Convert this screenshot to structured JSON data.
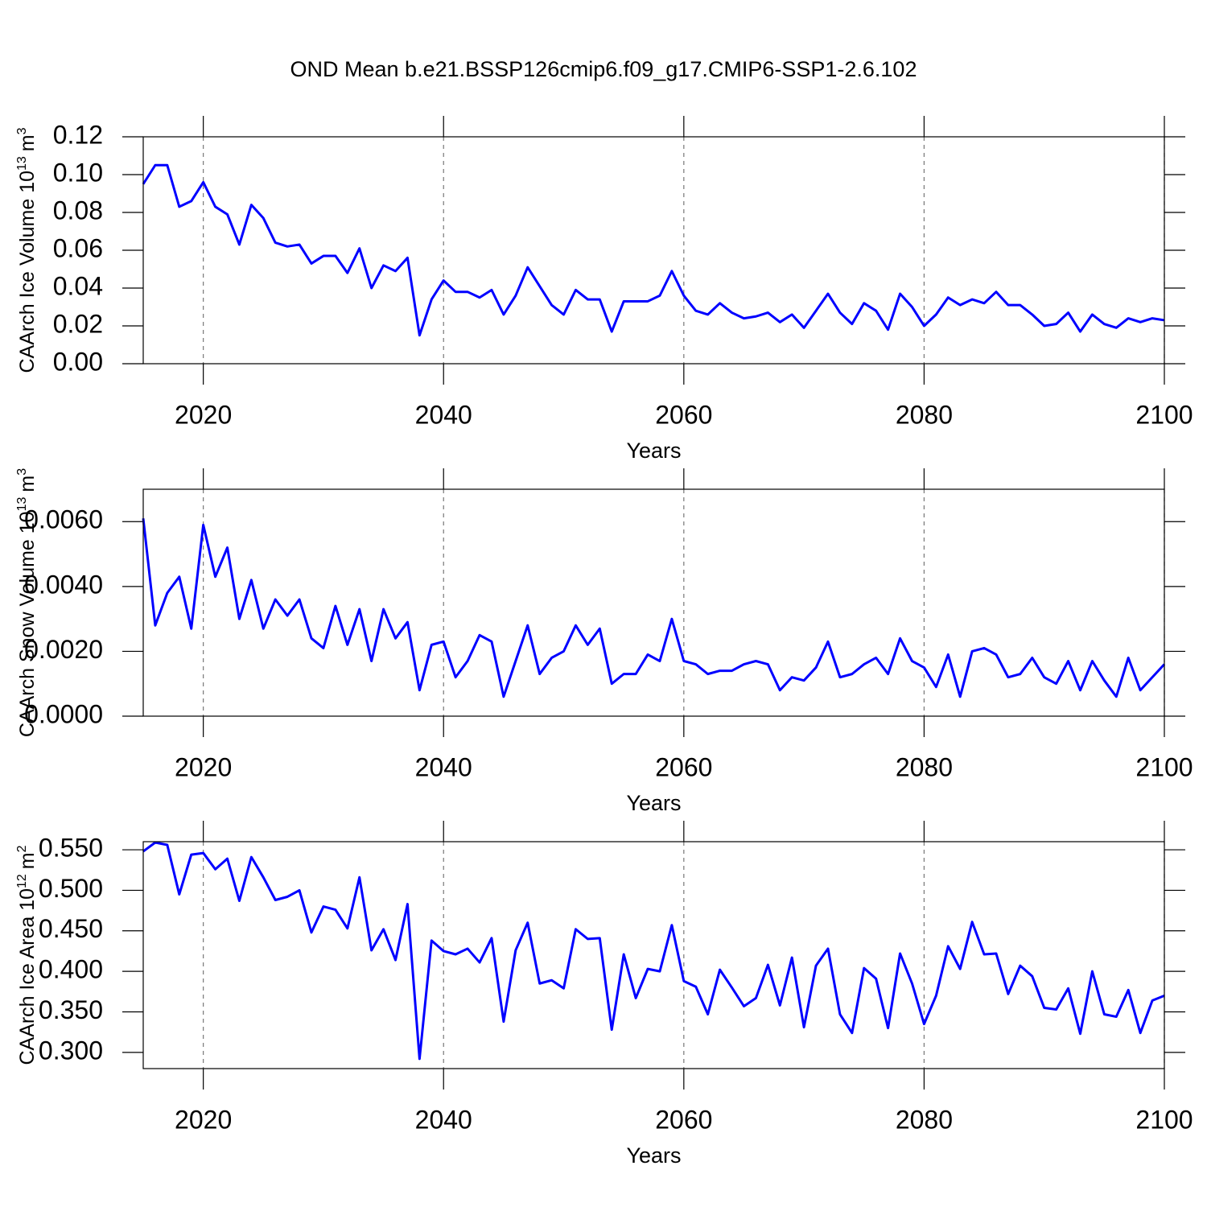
{
  "title": "OND Mean b.e21.BSSP126cmip6.f09_g17.CMIP6-SSP1-2.6.102",
  "chart_data": [
    {
      "type": "line",
      "xlabel": "Years",
      "ylabel": {
        "text": "CAArch Ice Volume 10",
        "exponent": "13",
        "unit": "m",
        "unit_exponent": "3"
      },
      "color": "#0000ff",
      "grid": true,
      "xlim": [
        2015,
        2100
      ],
      "xticks": [
        2020,
        2040,
        2060,
        2080,
        2100
      ],
      "ylim": [
        0,
        0.12
      ],
      "yticks": [
        {
          "value": 0,
          "label": "0.00"
        },
        {
          "value": 0.02,
          "label": "0.02"
        },
        {
          "value": 0.04,
          "label": "0.04"
        },
        {
          "value": 0.06,
          "label": "0.06"
        },
        {
          "value": 0.08,
          "label": "0.08"
        },
        {
          "value": 0.1,
          "label": "0.10"
        },
        {
          "value": 0.12,
          "label": "0.12"
        }
      ],
      "x": [
        2015,
        2016,
        2017,
        2018,
        2019,
        2020,
        2021,
        2022,
        2023,
        2024,
        2025,
        2026,
        2027,
        2028,
        2029,
        2030,
        2031,
        2032,
        2033,
        2034,
        2035,
        2036,
        2037,
        2038,
        2039,
        2040,
        2041,
        2042,
        2043,
        2044,
        2045,
        2046,
        2047,
        2048,
        2049,
        2050,
        2051,
        2052,
        2053,
        2054,
        2055,
        2056,
        2057,
        2058,
        2059,
        2060,
        2061,
        2062,
        2063,
        2064,
        2065,
        2066,
        2067,
        2068,
        2069,
        2070,
        2071,
        2072,
        2073,
        2074,
        2075,
        2076,
        2077,
        2078,
        2079,
        2080,
        2081,
        2082,
        2083,
        2084,
        2085,
        2086,
        2087,
        2088,
        2089,
        2090,
        2091,
        2092,
        2093,
        2094,
        2095,
        2096,
        2097,
        2098,
        2099,
        2100
      ],
      "values": [
        0.095,
        0.105,
        0.105,
        0.083,
        0.086,
        0.096,
        0.083,
        0.079,
        0.063,
        0.084,
        0.077,
        0.064,
        0.062,
        0.063,
        0.053,
        0.057,
        0.057,
        0.048,
        0.061,
        0.04,
        0.052,
        0.049,
        0.056,
        0.015,
        0.034,
        0.044,
        0.038,
        0.038,
        0.035,
        0.039,
        0.026,
        0.036,
        0.051,
        0.041,
        0.031,
        0.026,
        0.039,
        0.034,
        0.034,
        0.017,
        0.033,
        0.033,
        0.033,
        0.036,
        0.049,
        0.036,
        0.028,
        0.026,
        0.032,
        0.027,
        0.024,
        0.025,
        0.027,
        0.022,
        0.026,
        0.019,
        0.028,
        0.037,
        0.027,
        0.021,
        0.032,
        0.028,
        0.018,
        0.037,
        0.03,
        0.02,
        0.026,
        0.035,
        0.031,
        0.034,
        0.032,
        0.038,
        0.031,
        0.031,
        0.026,
        0.02,
        0.021,
        0.027,
        0.017,
        0.026,
        0.021,
        0.019,
        0.024,
        0.022,
        0.024,
        0.023
      ]
    },
    {
      "type": "line",
      "xlabel": "Years",
      "ylabel": {
        "text": "CAArch Snow Volume 10",
        "exponent": "13",
        "unit": "m",
        "unit_exponent": "3"
      },
      "color": "#0000ff",
      "grid": true,
      "xlim": [
        2015,
        2100
      ],
      "xticks": [
        2020,
        2040,
        2060,
        2080,
        2100
      ],
      "ylim": [
        0,
        0.007
      ],
      "yticks": [
        {
          "value": 0,
          "label": "0.0000"
        },
        {
          "value": 0.002,
          "label": "0.0020"
        },
        {
          "value": 0.004,
          "label": "0.0040"
        },
        {
          "value": 0.006,
          "label": "0.0060"
        }
      ],
      "x": [
        2015,
        2016,
        2017,
        2018,
        2019,
        2020,
        2021,
        2022,
        2023,
        2024,
        2025,
        2026,
        2027,
        2028,
        2029,
        2030,
        2031,
        2032,
        2033,
        2034,
        2035,
        2036,
        2037,
        2038,
        2039,
        2040,
        2041,
        2042,
        2043,
        2044,
        2045,
        2046,
        2047,
        2048,
        2049,
        2050,
        2051,
        2052,
        2053,
        2054,
        2055,
        2056,
        2057,
        2058,
        2059,
        2060,
        2061,
        2062,
        2063,
        2064,
        2065,
        2066,
        2067,
        2068,
        2069,
        2070,
        2071,
        2072,
        2073,
        2074,
        2075,
        2076,
        2077,
        2078,
        2079,
        2080,
        2081,
        2082,
        2083,
        2084,
        2085,
        2086,
        2087,
        2088,
        2089,
        2090,
        2091,
        2092,
        2093,
        2094,
        2095,
        2096,
        2097,
        2098,
        2099,
        2100
      ],
      "values": [
        0.0061,
        0.0028,
        0.0038,
        0.0043,
        0.0027,
        0.0059,
        0.0043,
        0.0052,
        0.003,
        0.0042,
        0.0027,
        0.0036,
        0.0031,
        0.0036,
        0.0024,
        0.0021,
        0.0034,
        0.0022,
        0.0033,
        0.0017,
        0.0033,
        0.0024,
        0.0029,
        0.0008,
        0.0022,
        0.0023,
        0.0012,
        0.0017,
        0.0025,
        0.0023,
        0.0006,
        0.0017,
        0.0028,
        0.0013,
        0.0018,
        0.002,
        0.0028,
        0.0022,
        0.0027,
        0.001,
        0.0013,
        0.0013,
        0.0019,
        0.0017,
        0.003,
        0.0017,
        0.0016,
        0.0013,
        0.0014,
        0.0014,
        0.0016,
        0.0017,
        0.0016,
        0.0008,
        0.0012,
        0.0011,
        0.0015,
        0.0023,
        0.0012,
        0.0013,
        0.0016,
        0.0018,
        0.0013,
        0.0024,
        0.0017,
        0.0015,
        0.0009,
        0.0019,
        0.0006,
        0.002,
        0.0021,
        0.0019,
        0.0012,
        0.0013,
        0.0018,
        0.0012,
        0.001,
        0.0017,
        0.0008,
        0.0017,
        0.0011,
        0.0006,
        0.0018,
        0.0008,
        0.0012,
        0.0016
      ]
    },
    {
      "type": "line",
      "xlabel": "Years",
      "ylabel": {
        "text": "CAArch Ice Area 10",
        "exponent": "12",
        "unit": "m",
        "unit_exponent": "2"
      },
      "color": "#0000ff",
      "grid": true,
      "xlim": [
        2015,
        2100
      ],
      "xticks": [
        2020,
        2040,
        2060,
        2080,
        2100
      ],
      "ylim": [
        0.28,
        0.56
      ],
      "yticks": [
        {
          "value": 0.3,
          "label": "0.300"
        },
        {
          "value": 0.35,
          "label": "0.350"
        },
        {
          "value": 0.4,
          "label": "0.400"
        },
        {
          "value": 0.45,
          "label": "0.450"
        },
        {
          "value": 0.5,
          "label": "0.500"
        },
        {
          "value": 0.55,
          "label": "0.550"
        }
      ],
      "x": [
        2015,
        2016,
        2017,
        2018,
        2019,
        2020,
        2021,
        2022,
        2023,
        2024,
        2025,
        2026,
        2027,
        2028,
        2029,
        2030,
        2031,
        2032,
        2033,
        2034,
        2035,
        2036,
        2037,
        2038,
        2039,
        2040,
        2041,
        2042,
        2043,
        2044,
        2045,
        2046,
        2047,
        2048,
        2049,
        2050,
        2051,
        2052,
        2053,
        2054,
        2055,
        2056,
        2057,
        2058,
        2059,
        2060,
        2061,
        2062,
        2063,
        2064,
        2065,
        2066,
        2067,
        2068,
        2069,
        2070,
        2071,
        2072,
        2073,
        2074,
        2075,
        2076,
        2077,
        2078,
        2079,
        2080,
        2081,
        2082,
        2083,
        2084,
        2085,
        2086,
        2087,
        2088,
        2089,
        2090,
        2091,
        2092,
        2093,
        2094,
        2095,
        2096,
        2097,
        2098,
        2099,
        2100
      ],
      "values": [
        0.548,
        0.559,
        0.556,
        0.495,
        0.544,
        0.546,
        0.526,
        0.539,
        0.487,
        0.541,
        0.516,
        0.488,
        0.492,
        0.5,
        0.448,
        0.48,
        0.476,
        0.453,
        0.516,
        0.426,
        0.452,
        0.414,
        0.483,
        0.292,
        0.438,
        0.425,
        0.421,
        0.428,
        0.411,
        0.441,
        0.338,
        0.426,
        0.46,
        0.385,
        0.389,
        0.379,
        0.452,
        0.44,
        0.441,
        0.328,
        0.421,
        0.367,
        0.403,
        0.4,
        0.457,
        0.388,
        0.381,
        0.347,
        0.402,
        0.38,
        0.357,
        0.367,
        0.408,
        0.358,
        0.417,
        0.331,
        0.407,
        0.428,
        0.347,
        0.324,
        0.404,
        0.391,
        0.33,
        0.422,
        0.385,
        0.335,
        0.37,
        0.431,
        0.403,
        0.461,
        0.421,
        0.422,
        0.372,
        0.407,
        0.394,
        0.355,
        0.353,
        0.379,
        0.323,
        0.4,
        0.347,
        0.344,
        0.377,
        0.324,
        0.364,
        0.37
      ]
    }
  ]
}
